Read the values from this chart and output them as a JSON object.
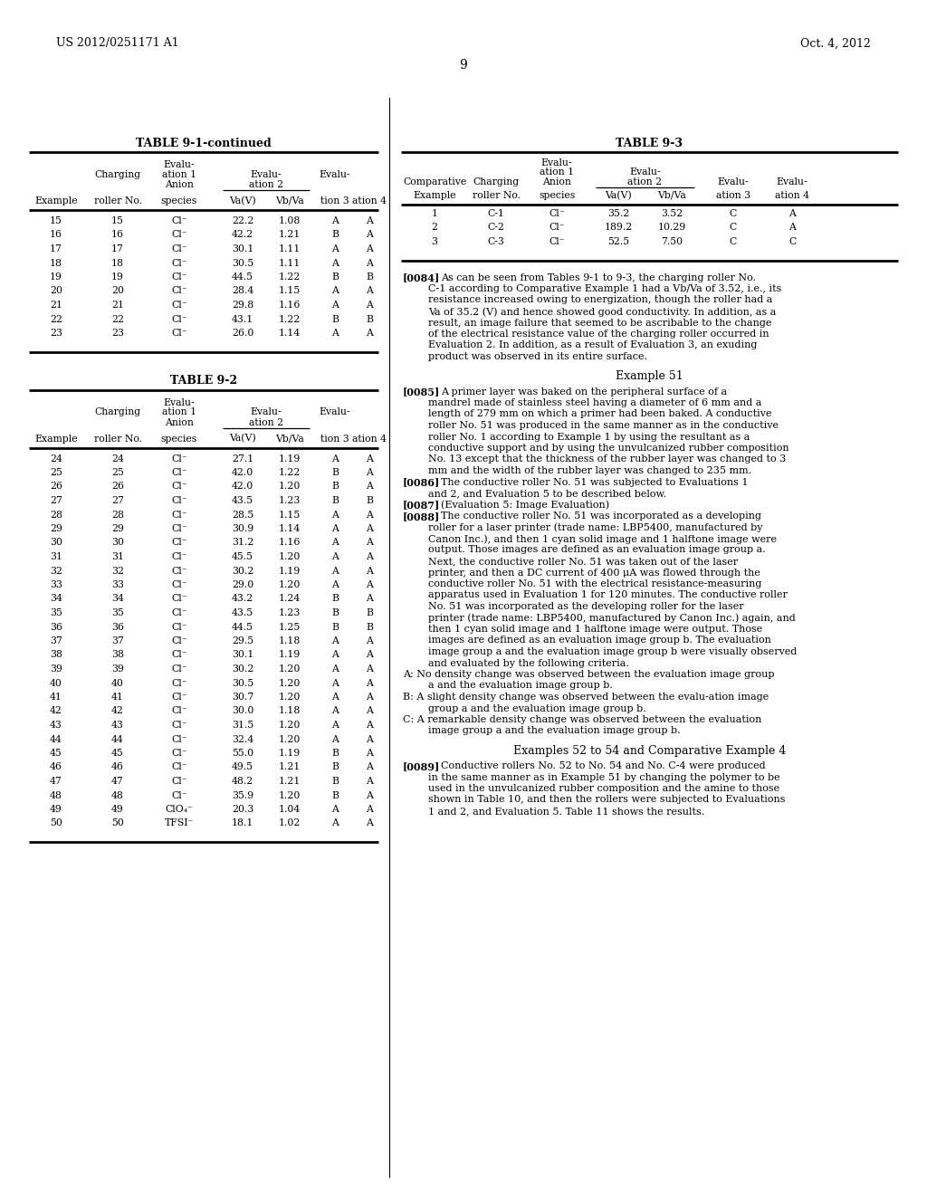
{
  "page_header_left": "US 2012/0251171 A1",
  "page_header_right": "Oct. 4, 2012",
  "page_number": "9",
  "bg_color": "#ffffff",
  "text_color": "#000000",
  "table1_title": "TABLE 9-1-continued",
  "table1_rows": [
    [
      "15",
      "15",
      "Cl⁻",
      "22.2",
      "1.08",
      "A",
      "A"
    ],
    [
      "16",
      "16",
      "Cl⁻",
      "42.2",
      "1.21",
      "B",
      "A"
    ],
    [
      "17",
      "17",
      "Cl⁻",
      "30.1",
      "1.11",
      "A",
      "A"
    ],
    [
      "18",
      "18",
      "Cl⁻",
      "30.5",
      "1.11",
      "A",
      "A"
    ],
    [
      "19",
      "19",
      "Cl⁻",
      "44.5",
      "1.22",
      "B",
      "B"
    ],
    [
      "20",
      "20",
      "Cl⁻",
      "28.4",
      "1.15",
      "A",
      "A"
    ],
    [
      "21",
      "21",
      "Cl⁻",
      "29.8",
      "1.16",
      "A",
      "A"
    ],
    [
      "22",
      "22",
      "Cl⁻",
      "43.1",
      "1.22",
      "B",
      "B"
    ],
    [
      "23",
      "23",
      "Cl⁻",
      "26.0",
      "1.14",
      "A",
      "A"
    ]
  ],
  "table2_title": "TABLE 9-2",
  "table2_rows": [
    [
      "24",
      "24",
      "Cl⁻",
      "27.1",
      "1.19",
      "A",
      "A"
    ],
    [
      "25",
      "25",
      "Cl⁻",
      "42.0",
      "1.22",
      "B",
      "A"
    ],
    [
      "26",
      "26",
      "Cl⁻",
      "42.0",
      "1.20",
      "B",
      "A"
    ],
    [
      "27",
      "27",
      "Cl⁻",
      "43.5",
      "1.23",
      "B",
      "B"
    ],
    [
      "28",
      "28",
      "Cl⁻",
      "28.5",
      "1.15",
      "A",
      "A"
    ],
    [
      "29",
      "29",
      "Cl⁻",
      "30.9",
      "1.14",
      "A",
      "A"
    ],
    [
      "30",
      "30",
      "Cl⁻",
      "31.2",
      "1.16",
      "A",
      "A"
    ],
    [
      "31",
      "31",
      "Cl⁻",
      "45.5",
      "1.20",
      "A",
      "A"
    ],
    [
      "32",
      "32",
      "Cl⁻",
      "30.2",
      "1.19",
      "A",
      "A"
    ],
    [
      "33",
      "33",
      "Cl⁻",
      "29.0",
      "1.20",
      "A",
      "A"
    ],
    [
      "34",
      "34",
      "Cl⁻",
      "43.2",
      "1.24",
      "B",
      "A"
    ],
    [
      "35",
      "35",
      "Cl⁻",
      "43.5",
      "1.23",
      "B",
      "B"
    ],
    [
      "36",
      "36",
      "Cl⁻",
      "44.5",
      "1.25",
      "B",
      "B"
    ],
    [
      "37",
      "37",
      "Cl⁻",
      "29.5",
      "1.18",
      "A",
      "A"
    ],
    [
      "38",
      "38",
      "Cl⁻",
      "30.1",
      "1.19",
      "A",
      "A"
    ],
    [
      "39",
      "39",
      "Cl⁻",
      "30.2",
      "1.20",
      "A",
      "A"
    ],
    [
      "40",
      "40",
      "Cl⁻",
      "30.5",
      "1.20",
      "A",
      "A"
    ],
    [
      "41",
      "41",
      "Cl⁻",
      "30.7",
      "1.20",
      "A",
      "A"
    ],
    [
      "42",
      "42",
      "Cl⁻",
      "30.0",
      "1.18",
      "A",
      "A"
    ],
    [
      "43",
      "43",
      "Cl⁻",
      "31.5",
      "1.20",
      "A",
      "A"
    ],
    [
      "44",
      "44",
      "Cl⁻",
      "32.4",
      "1.20",
      "A",
      "A"
    ],
    [
      "45",
      "45",
      "Cl⁻",
      "55.0",
      "1.19",
      "B",
      "A"
    ],
    [
      "46",
      "46",
      "Cl⁻",
      "49.5",
      "1.21",
      "B",
      "A"
    ],
    [
      "47",
      "47",
      "Cl⁻",
      "48.2",
      "1.21",
      "B",
      "A"
    ],
    [
      "48",
      "48",
      "Cl⁻",
      "35.9",
      "1.20",
      "B",
      "A"
    ],
    [
      "49",
      "49",
      "ClO₄⁻",
      "20.3",
      "1.04",
      "A",
      "A"
    ],
    [
      "50",
      "50",
      "TFSI⁻",
      "18.1",
      "1.02",
      "A",
      "A"
    ]
  ],
  "table3_title": "TABLE 9-3",
  "table3_rows": [
    [
      "1",
      "C-1",
      "Cl⁻",
      "35.2",
      "3.52",
      "C",
      "A"
    ],
    [
      "2",
      "C-2",
      "Cl⁻",
      "189.2",
      "10.29",
      "C",
      "A"
    ],
    [
      "3",
      "C-3",
      "Cl⁻",
      "52.5",
      "7.50",
      "C",
      "C"
    ]
  ],
  "para_0084": "[0084]    As can be seen from Tables 9-1 to 9-3, the charging roller No. C-1 according to Comparative Example 1 had a Vb/Va of 3.52, i.e., its resistance increased owing to energization, though the roller had a Va of 35.2 (V) and hence showed good conductivity. In addition, as a result, an image failure that seemed to be ascribable to the change of the electrical resistance value of the charging roller occurred in Evaluation 2. In addition, as a result of Evaluation 3, an exuding product was observed in its entire surface.",
  "example51_title": "Example 51",
  "para_0085": "[0085]    A primer layer was baked on the peripheral surface of a mandrel made of stainless steel having a diameter of 6 mm and a length of 279 mm on which a primer had been baked. A conductive roller No. 51 was produced in the same manner as in the conductive roller No. 1 according to Example 1 by using the resultant as a conductive support and by using the unvulcanized rubber composition No. 13 except that the thickness of the rubber layer was changed to 3 mm and the width of the rubber layer was changed to 235 mm.",
  "para_0086": "[0086]    The conductive roller No. 51 was subjected to Evaluations 1 and 2, and Evaluation 5 to be described below.",
  "para_0087": "[0087]    (Evaluation 5: Image Evaluation)",
  "para_0088_main": "[0088]    The conductive roller No. 51 was incorporated as a developing roller for a laser printer (trade name: LBP5400, manufactured by Canon Inc.), and then 1 cyan solid image and 1 halftone image were output. Those images are defined as an evaluation image group a. Next, the conductive roller No. 51 was taken out of the laser printer, and then a DC current of 400 μA was flowed through the conductive roller No. 51 with the electrical resistance-measuring apparatus used in Evaluation 1 for 120 minutes. The conductive roller No. 51 was incorporated as the developing roller for the laser printer (trade name: LBP5400, manufactured by Canon Inc.) again, and then 1 cyan solid image and 1 halftone image were output. Those images are defined as an evaluation image group b. The evaluation image group a and the evaluation image group b were visually observed and evaluated by the following criteria.",
  "para_0088_a": "A: No density change was observed between the evaluation image group a and the evaluation image group b.",
  "para_0088_b": "B: A slight density change was observed between the evalu-ation image group a and the evaluation image group b.",
  "para_0088_c": "C: A remarkable density change was observed between the evaluation image group a and the evaluation image group b.",
  "example52_title": "Examples 52 to 54 and Comparative Example 4",
  "para_0089": "[0089]    Conductive rollers No. 52 to No. 54 and No. C-4 were produced in the same manner as in Example 51 by changing the polymer to be used in the unvulcanized rubber composition and the amine to those shown in Table 10, and then the rollers were subjected to Evaluations 1 and 2, and Evaluation 5. Table 11 shows the results."
}
